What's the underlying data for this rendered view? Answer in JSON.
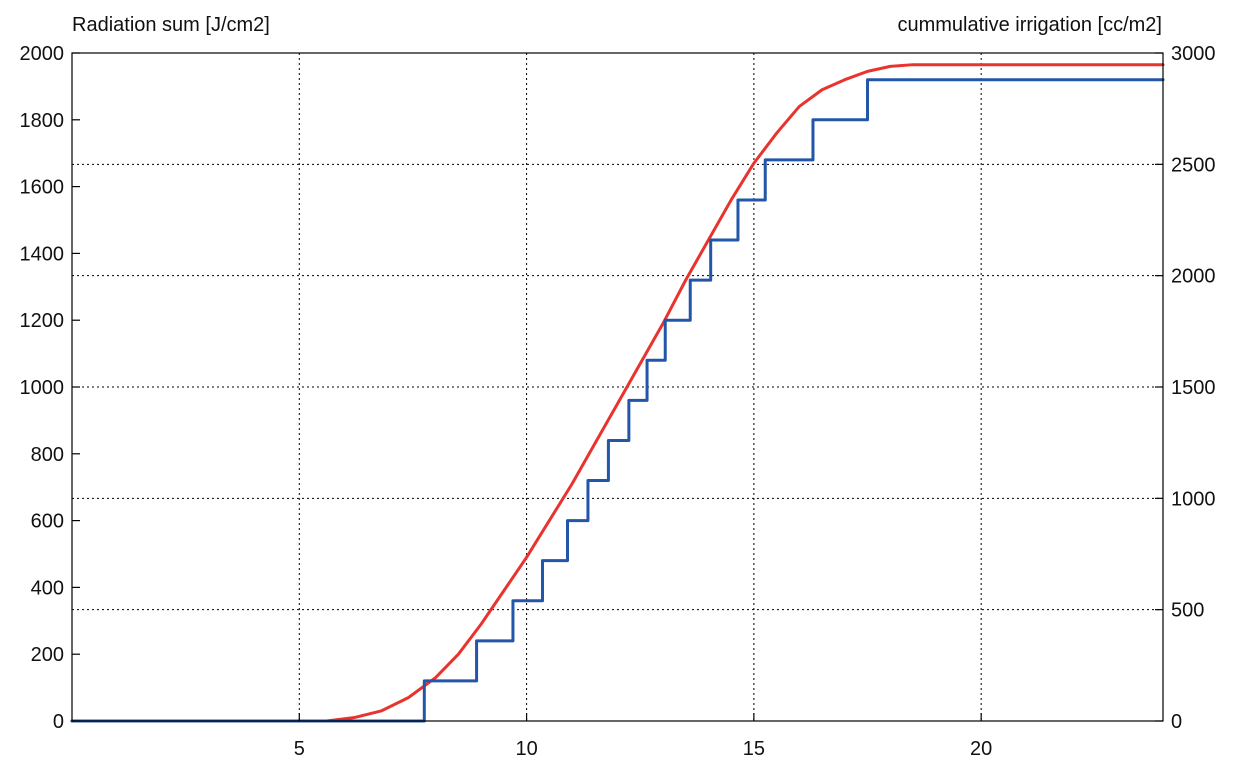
{
  "chart_data": {
    "type": "line",
    "ylabel_left": "Radiation sum [J/cm2]",
    "ylabel_right": "cummulative irrigation [cc/m2]",
    "xlim": [
      0,
      24
    ],
    "ylim_left": [
      0,
      2000
    ],
    "ylim_right": [
      0,
      3000
    ],
    "x_ticks": [
      5,
      10,
      15,
      20
    ],
    "y_ticks_left": [
      0,
      200,
      400,
      600,
      800,
      1000,
      1200,
      1400,
      1600,
      1800,
      2000
    ],
    "y_ticks_right": [
      0,
      500,
      1000,
      1500,
      2000,
      2500,
      3000
    ],
    "grid": true,
    "series": [
      {
        "axis": "left",
        "color": "#e8332e",
        "x": [
          0,
          5.6,
          6.2,
          6.8,
          7.4,
          8.0,
          8.5,
          9.0,
          9.5,
          10.0,
          10.5,
          11.0,
          11.5,
          12.0,
          12.5,
          13.0,
          13.5,
          14.0,
          14.5,
          15.0,
          15.5,
          16.0,
          16.5,
          17.0,
          17.5,
          18.0,
          18.5,
          24
        ],
        "y": [
          0,
          0,
          10,
          30,
          70,
          130,
          200,
          290,
          390,
          490,
          600,
          710,
          830,
          950,
          1070,
          1190,
          1320,
          1440,
          1560,
          1670,
          1760,
          1840,
          1890,
          1920,
          1945,
          1960,
          1965,
          1965
        ]
      },
      {
        "axis": "right",
        "color": "#2356a8",
        "step": true,
        "x": [
          0,
          7.75,
          8.9,
          9.7,
          10.35,
          10.9,
          11.35,
          11.8,
          12.25,
          12.65,
          13.05,
          13.6,
          14.05,
          14.65,
          15.25,
          16.3,
          17.5,
          24
        ],
        "y": [
          0,
          180,
          360,
          540,
          720,
          900,
          1080,
          1260,
          1440,
          1620,
          1800,
          1980,
          2160,
          2340,
          2520,
          2700,
          2880,
          2880
        ]
      }
    ]
  }
}
